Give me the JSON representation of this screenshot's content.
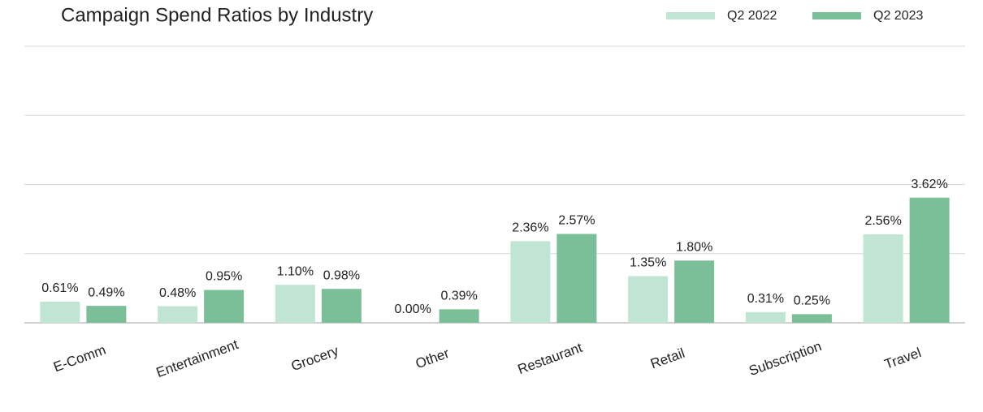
{
  "chart_data": {
    "type": "bar",
    "title": "Campaign Spend Ratios by Industry",
    "categories": [
      "E-Comm",
      "Entertainment",
      "Grocery",
      "Other",
      "Restaurant",
      "Retail",
      "Subscription",
      "Travel"
    ],
    "series": [
      {
        "name": "Q2 2022",
        "color": "#c1e5d4",
        "values": [
          0.61,
          0.48,
          1.1,
          0.0,
          2.36,
          1.35,
          0.31,
          2.56
        ],
        "value_labels": [
          "0.61%",
          "0.48%",
          "1.10%",
          "0.00%",
          "2.36%",
          "1.35%",
          "0.31%",
          "2.56%"
        ]
      },
      {
        "name": "Q2 2023",
        "color": "#7bbf98",
        "values": [
          0.49,
          0.95,
          0.98,
          0.39,
          2.57,
          1.8,
          0.25,
          3.62
        ],
        "value_labels": [
          "0.49%",
          "0.95%",
          "0.98%",
          "0.39%",
          "2.57%",
          "1.80%",
          "0.25%",
          "3.62%"
        ]
      }
    ],
    "ylim": [
      0,
      8
    ],
    "yticks": [
      0,
      2,
      4,
      6,
      8
    ],
    "grid": true,
    "legend": "top-right"
  }
}
